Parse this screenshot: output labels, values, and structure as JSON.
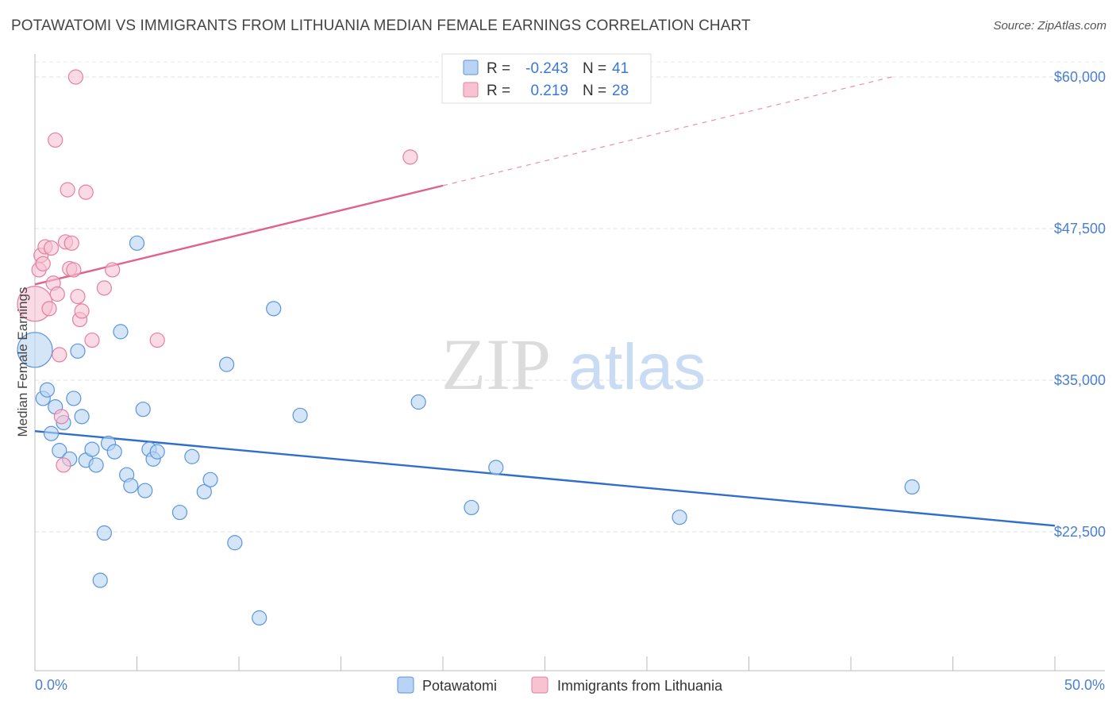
{
  "chart_data": {
    "type": "scatter",
    "title": "POTAWATOMI VS IMMIGRANTS FROM LITHUANIA MEDIAN FEMALE EARNINGS CORRELATION CHART",
    "source": "Source: ZipAtlas.com",
    "xlabel": "",
    "ylabel": "Median Female Earnings",
    "xlim": [
      0,
      50
    ],
    "ylim": [
      12000,
      61500
    ],
    "x_tick_labels": [
      "0.0%",
      "50.0%"
    ],
    "y_ticks": [
      22500,
      35000,
      47500,
      60000
    ],
    "y_tick_labels": [
      "$22,500",
      "$35,000",
      "$47,500",
      "$60,000"
    ],
    "watermark": {
      "zip": "ZIP",
      "atlas": "atlas"
    },
    "legend": {
      "rows": [
        {
          "r_label": "R =",
          "r_value": "-0.243",
          "n_label": "N =",
          "n_value": "41"
        },
        {
          "r_label": "R =",
          "r_value": "0.219",
          "n_label": "N =",
          "n_value": "28"
        }
      ]
    },
    "colors": {
      "blue_fill": "#b8d3f3",
      "blue_stroke": "#5b95dc",
      "blue_line": "#2f6fcb",
      "pink_fill": "#f7c2d2",
      "pink_stroke": "#e47fa0",
      "pink_line": "#e0628a"
    },
    "series": [
      {
        "name": "Potawatomi",
        "color": "blue",
        "trend": {
          "x": [
            0,
            50
          ],
          "y": [
            30800,
            23000
          ],
          "solid_to": 50
        },
        "points": [
          {
            "x": 0.0,
            "y": 37500,
            "big": true
          },
          {
            "x": 0.4,
            "y": 33500
          },
          {
            "x": 0.6,
            "y": 34200
          },
          {
            "x": 0.8,
            "y": 30600
          },
          {
            "x": 1.0,
            "y": 32800
          },
          {
            "x": 1.2,
            "y": 29200
          },
          {
            "x": 1.4,
            "y": 31500
          },
          {
            "x": 1.7,
            "y": 28500
          },
          {
            "x": 1.9,
            "y": 33500
          },
          {
            "x": 2.1,
            "y": 37400
          },
          {
            "x": 2.3,
            "y": 32000
          },
          {
            "x": 2.5,
            "y": 28400
          },
          {
            "x": 2.8,
            "y": 29300
          },
          {
            "x": 3.0,
            "y": 28000
          },
          {
            "x": 3.2,
            "y": 18500
          },
          {
            "x": 3.4,
            "y": 22400
          },
          {
            "x": 3.6,
            "y": 29800
          },
          {
            "x": 3.9,
            "y": 29100
          },
          {
            "x": 4.2,
            "y": 39000
          },
          {
            "x": 4.5,
            "y": 27200
          },
          {
            "x": 4.7,
            "y": 26300
          },
          {
            "x": 5.0,
            "y": 46300
          },
          {
            "x": 5.3,
            "y": 32600
          },
          {
            "x": 5.4,
            "y": 25900
          },
          {
            "x": 5.6,
            "y": 29300
          },
          {
            "x": 5.8,
            "y": 28500
          },
          {
            "x": 6.0,
            "y": 29100
          },
          {
            "x": 7.1,
            "y": 24100
          },
          {
            "x": 7.7,
            "y": 28700
          },
          {
            "x": 8.3,
            "y": 25800
          },
          {
            "x": 8.6,
            "y": 26800
          },
          {
            "x": 9.4,
            "y": 36300
          },
          {
            "x": 9.8,
            "y": 21600
          },
          {
            "x": 11.0,
            "y": 15400
          },
          {
            "x": 11.7,
            "y": 40900
          },
          {
            "x": 13.0,
            "y": 32100
          },
          {
            "x": 18.8,
            "y": 33200
          },
          {
            "x": 21.4,
            "y": 24500
          },
          {
            "x": 22.6,
            "y": 27800
          },
          {
            "x": 31.6,
            "y": 23700
          },
          {
            "x": 43.0,
            "y": 26200
          }
        ]
      },
      {
        "name": "Immigrants from Lithuania",
        "color": "pink",
        "trend": {
          "x": [
            0,
            42
          ],
          "y": [
            42900,
            60000
          ],
          "solid_to": 20
        },
        "points": [
          {
            "x": 0.0,
            "y": 41300,
            "big": true
          },
          {
            "x": 0.2,
            "y": 44100
          },
          {
            "x": 0.3,
            "y": 45300
          },
          {
            "x": 0.4,
            "y": 44600
          },
          {
            "x": 0.5,
            "y": 46000
          },
          {
            "x": 0.7,
            "y": 40900
          },
          {
            "x": 0.8,
            "y": 45900
          },
          {
            "x": 0.9,
            "y": 43000
          },
          {
            "x": 1.0,
            "y": 54800
          },
          {
            "x": 1.1,
            "y": 42100
          },
          {
            "x": 1.2,
            "y": 37100
          },
          {
            "x": 1.3,
            "y": 32000
          },
          {
            "x": 1.4,
            "y": 28000
          },
          {
            "x": 1.5,
            "y": 46400
          },
          {
            "x": 1.6,
            "y": 50700
          },
          {
            "x": 1.7,
            "y": 44200
          },
          {
            "x": 1.8,
            "y": 46300
          },
          {
            "x": 1.9,
            "y": 44100
          },
          {
            "x": 2.0,
            "y": 60000
          },
          {
            "x": 2.1,
            "y": 41900
          },
          {
            "x": 2.2,
            "y": 40000
          },
          {
            "x": 2.3,
            "y": 40700
          },
          {
            "x": 2.5,
            "y": 50500
          },
          {
            "x": 2.8,
            "y": 38300
          },
          {
            "x": 3.4,
            "y": 42600
          },
          {
            "x": 3.8,
            "y": 44100
          },
          {
            "x": 6.0,
            "y": 38300
          },
          {
            "x": 18.4,
            "y": 53400
          }
        ]
      }
    ]
  }
}
